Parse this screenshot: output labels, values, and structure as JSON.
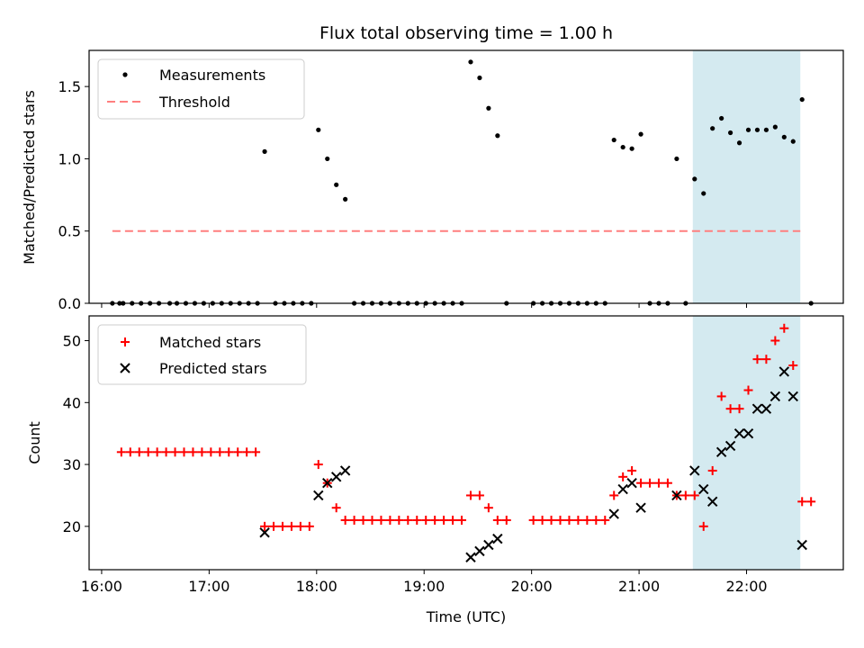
{
  "chart_data": {
    "type": "scatter",
    "title": "Flux total observing time = 1.00 h",
    "xlabel": "Time (UTC)",
    "x_ticks": [
      "16:00",
      "17:00",
      "18:00",
      "19:00",
      "20:00",
      "21:00",
      "22:00"
    ],
    "xlim": [
      "15:53",
      "22:54"
    ],
    "shaded_interval": [
      "21:30",
      "22:30"
    ],
    "colors": {
      "measurements": "#000000",
      "threshold": "#ff7f7f",
      "matched": "#ff0000",
      "predicted": "#000000",
      "shaded": "#d4eaf0"
    },
    "panels": [
      {
        "ylabel": "Matched/Predicted stars",
        "ylim": [
          0,
          1.75
        ],
        "y_ticks": [
          "0.0",
          "0.5",
          "1.0",
          "1.5"
        ],
        "legend": [
          "Measurements",
          "Threshold"
        ],
        "threshold": {
          "y": 0.5,
          "x_range": [
            "16:06",
            "22:30"
          ]
        },
        "series": [
          {
            "name": "Measurements",
            "marker": "dot",
            "points": [
              [
                "16:06",
                0
              ],
              [
                "16:10",
                0
              ],
              [
                "16:12",
                0
              ],
              [
                "16:17",
                0
              ],
              [
                "16:22",
                0
              ],
              [
                "16:27",
                0
              ],
              [
                "16:32",
                0
              ],
              [
                "16:38",
                0
              ],
              [
                "16:42",
                0
              ],
              [
                "16:47",
                0
              ],
              [
                "16:52",
                0
              ],
              [
                "16:57",
                0
              ],
              [
                "17:02",
                0
              ],
              [
                "17:07",
                0
              ],
              [
                "17:12",
                0
              ],
              [
                "17:17",
                0
              ],
              [
                "17:22",
                0
              ],
              [
                "17:27",
                0
              ],
              [
                "17:31",
                1.05
              ],
              [
                "17:37",
                0
              ],
              [
                "17:42",
                0
              ],
              [
                "17:47",
                0
              ],
              [
                "17:52",
                0
              ],
              [
                "17:57",
                0
              ],
              [
                "18:01",
                1.2
              ],
              [
                "18:06",
                1.0
              ],
              [
                "18:11",
                0.82
              ],
              [
                "18:16",
                0.72
              ],
              [
                "18:21",
                0
              ],
              [
                "18:26",
                0
              ],
              [
                "18:31",
                0
              ],
              [
                "18:36",
                0
              ],
              [
                "18:41",
                0
              ],
              [
                "18:46",
                0
              ],
              [
                "18:51",
                0
              ],
              [
                "18:56",
                0
              ],
              [
                "19:01",
                0
              ],
              [
                "19:06",
                0
              ],
              [
                "19:11",
                0
              ],
              [
                "19:16",
                0
              ],
              [
                "19:21",
                0
              ],
              [
                "19:26",
                1.67
              ],
              [
                "19:31",
                1.56
              ],
              [
                "19:36",
                1.35
              ],
              [
                "19:41",
                1.16
              ],
              [
                "19:46",
                0
              ],
              [
                "20:01",
                0
              ],
              [
                "20:06",
                0
              ],
              [
                "20:11",
                0
              ],
              [
                "20:16",
                0
              ],
              [
                "20:21",
                0
              ],
              [
                "20:26",
                0
              ],
              [
                "20:31",
                0
              ],
              [
                "20:36",
                0
              ],
              [
                "20:41",
                0
              ],
              [
                "20:46",
                1.13
              ],
              [
                "20:51",
                1.08
              ],
              [
                "20:56",
                1.07
              ],
              [
                "21:01",
                1.17
              ],
              [
                "21:06",
                0
              ],
              [
                "21:11",
                0
              ],
              [
                "21:16",
                0
              ],
              [
                "21:21",
                1.0
              ],
              [
                "21:26",
                0
              ],
              [
                "21:31",
                0.86
              ],
              [
                "21:36",
                0.76
              ],
              [
                "21:41",
                1.21
              ],
              [
                "21:46",
                1.28
              ],
              [
                "21:51",
                1.18
              ],
              [
                "21:56",
                1.11
              ],
              [
                "22:01",
                1.2
              ],
              [
                "22:06",
                1.2
              ],
              [
                "22:11",
                1.2
              ],
              [
                "22:16",
                1.22
              ],
              [
                "22:21",
                1.15
              ],
              [
                "22:26",
                1.12
              ],
              [
                "22:31",
                1.41
              ],
              [
                "22:36",
                0
              ]
            ]
          }
        ]
      },
      {
        "ylabel": "Count",
        "ylim": [
          13,
          54
        ],
        "y_ticks": [
          "20",
          "30",
          "40",
          "50"
        ],
        "legend": [
          "Matched stars",
          "Predicted stars"
        ],
        "series": [
          {
            "name": "Matched stars",
            "marker": "plus",
            "points": [
              [
                "16:11",
                32
              ],
              [
                "16:16",
                32
              ],
              [
                "16:21",
                32
              ],
              [
                "16:26",
                32
              ],
              [
                "16:31",
                32
              ],
              [
                "16:36",
                32
              ],
              [
                "16:41",
                32
              ],
              [
                "16:46",
                32
              ],
              [
                "16:51",
                32
              ],
              [
                "16:56",
                32
              ],
              [
                "17:01",
                32
              ],
              [
                "17:06",
                32
              ],
              [
                "17:11",
                32
              ],
              [
                "17:16",
                32
              ],
              [
                "17:21",
                32
              ],
              [
                "17:26",
                32
              ],
              [
                "17:31",
                20
              ],
              [
                "17:36",
                20
              ],
              [
                "17:41",
                20
              ],
              [
                "17:46",
                20
              ],
              [
                "17:51",
                20
              ],
              [
                "17:56",
                20
              ],
              [
                "18:01",
                30
              ],
              [
                "18:06",
                27
              ],
              [
                "18:11",
                23
              ],
              [
                "18:16",
                21
              ],
              [
                "18:21",
                21
              ],
              [
                "18:26",
                21
              ],
              [
                "18:31",
                21
              ],
              [
                "18:36",
                21
              ],
              [
                "18:41",
                21
              ],
              [
                "18:46",
                21
              ],
              [
                "18:51",
                21
              ],
              [
                "18:56",
                21
              ],
              [
                "19:01",
                21
              ],
              [
                "19:06",
                21
              ],
              [
                "19:11",
                21
              ],
              [
                "19:16",
                21
              ],
              [
                "19:21",
                21
              ],
              [
                "19:26",
                25
              ],
              [
                "19:31",
                25
              ],
              [
                "19:36",
                23
              ],
              [
                "19:41",
                21
              ],
              [
                "19:46",
                21
              ],
              [
                "20:01",
                21
              ],
              [
                "20:06",
                21
              ],
              [
                "20:11",
                21
              ],
              [
                "20:16",
                21
              ],
              [
                "20:21",
                21
              ],
              [
                "20:26",
                21
              ],
              [
                "20:31",
                21
              ],
              [
                "20:36",
                21
              ],
              [
                "20:41",
                21
              ],
              [
                "20:46",
                25
              ],
              [
                "20:51",
                28
              ],
              [
                "20:56",
                29
              ],
              [
                "21:01",
                27
              ],
              [
                "21:06",
                27
              ],
              [
                "21:11",
                27
              ],
              [
                "21:16",
                27
              ],
              [
                "21:21",
                25
              ],
              [
                "21:26",
                25
              ],
              [
                "21:31",
                25
              ],
              [
                "21:36",
                20
              ],
              [
                "21:41",
                29
              ],
              [
                "21:46",
                41
              ],
              [
                "21:51",
                39
              ],
              [
                "21:56",
                39
              ],
              [
                "22:01",
                42
              ],
              [
                "22:06",
                47
              ],
              [
                "22:11",
                47
              ],
              [
                "22:16",
                50
              ],
              [
                "22:21",
                52
              ],
              [
                "22:26",
                46
              ],
              [
                "22:31",
                24
              ],
              [
                "22:36",
                24
              ]
            ]
          },
          {
            "name": "Predicted stars",
            "marker": "x",
            "points": [
              [
                "17:31",
                19
              ],
              [
                "18:01",
                25
              ],
              [
                "18:06",
                27
              ],
              [
                "18:11",
                28
              ],
              [
                "18:16",
                29
              ],
              [
                "19:26",
                15
              ],
              [
                "19:31",
                16
              ],
              [
                "19:36",
                17
              ],
              [
                "19:41",
                18
              ],
              [
                "20:46",
                22
              ],
              [
                "20:51",
                26
              ],
              [
                "20:56",
                27
              ],
              [
                "21:01",
                23
              ],
              [
                "21:21",
                25
              ],
              [
                "21:31",
                29
              ],
              [
                "21:36",
                26
              ],
              [
                "21:41",
                24
              ],
              [
                "21:46",
                32
              ],
              [
                "21:51",
                33
              ],
              [
                "21:56",
                35
              ],
              [
                "22:01",
                35
              ],
              [
                "22:06",
                39
              ],
              [
                "22:11",
                39
              ],
              [
                "22:16",
                41
              ],
              [
                "22:21",
                45
              ],
              [
                "22:26",
                41
              ],
              [
                "22:31",
                17
              ]
            ]
          }
        ]
      }
    ]
  }
}
